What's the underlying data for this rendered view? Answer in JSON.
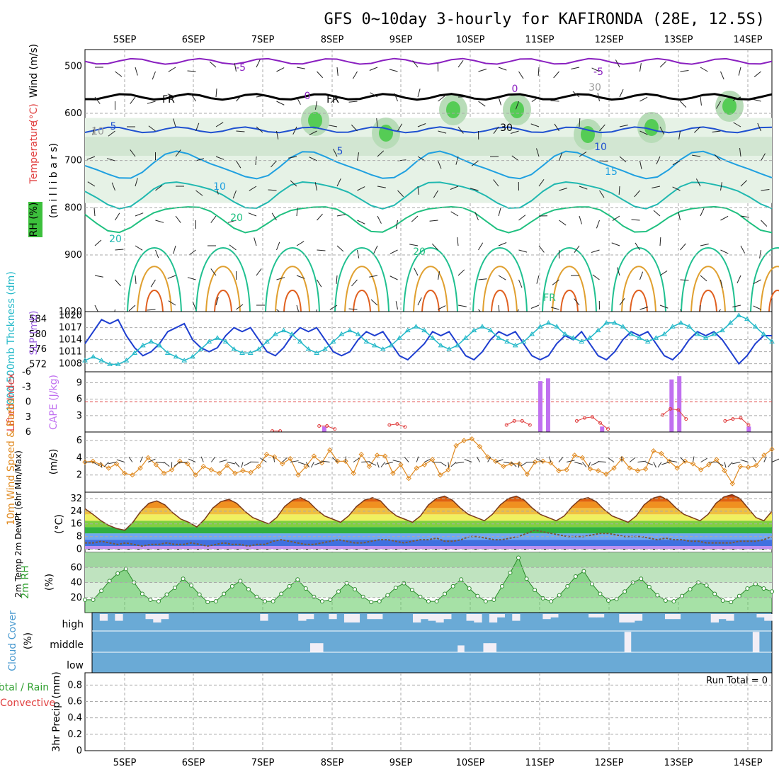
{
  "title": "GFS 0~10day 3-hourly for KAFIRONDA (28E, 12.5S)",
  "colors": {
    "grid": "#aaaaaa",
    "slp": "#1f3fd0",
    "thick": "#22b8c8",
    "cape": "#c070f0",
    "li": "#e04040",
    "wind": "#e08a20",
    "rh2m_fill": "#3cc03c",
    "rh2m_line": "#2a8a2a",
    "cloud": "#6aaad6",
    "cloud_gap": "#f2eef6",
    "temp_line": "#7a3a1a",
    "dew_line": "#7a5a3a",
    "temp_levels": [
      "#c090f0",
      "#4070e0",
      "#70a8f0",
      "#30b040",
      "#80d040",
      "#f0f060",
      "#f0c040",
      "#f09020",
      "#e06010",
      "#c03000"
    ]
  },
  "chart_data": [
    {
      "panel": "upper-air cross-section",
      "type": "heatmap",
      "x_axis_top": [
        "5SEP",
        "6SEP",
        "7SEP",
        "8SEP",
        "9SEP",
        "10SEP",
        "11SEP",
        "12SEP",
        "13SEP",
        "14SEP"
      ],
      "y_ticks": [
        "500",
        "600",
        "700",
        "800",
        "900",
        "1020"
      ],
      "ylabel_parts": [
        "RH (%)",
        "Temperature",
        "(°C)",
        "Wind (m/s)"
      ],
      "ylabel_units": "(m i l l i b a r s)",
      "contour_labels": [
        "-5",
        "-5",
        "0",
        "0",
        "5",
        "5",
        "10",
        "10",
        "15",
        "20",
        "20",
        "20",
        "FR",
        "FR",
        "FR",
        "30",
        "30",
        "10"
      ],
      "temp_contours": [
        {
          "label": "-5",
          "level": 490,
          "color": "#8a20c0"
        },
        {
          "label": "0",
          "level": 565,
          "color": "#000000"
        },
        {
          "label": "5",
          "level": 635,
          "color": "#1f50d0"
        },
        {
          "label": "10",
          "level": 710,
          "color": "#1fa0e0"
        },
        {
          "label": "15",
          "level": 770,
          "color": "#20b8b0"
        },
        {
          "label": "20",
          "level": 820,
          "color": "#20c080"
        }
      ]
    },
    {
      "panel": "thickness-slp",
      "type": "line",
      "ylabel_left": "1000-500mb Thckness (dm)",
      "ylabel_right": "SLP (mb)",
      "left_ticks": [
        "584",
        "580",
        "576",
        "572"
      ],
      "right_ticks": [
        "1020",
        "1017",
        "1014",
        "1011",
        "1008"
      ],
      "series": [
        {
          "name": "SLP",
          "values": [
            1013,
            1016,
            1019,
            1018,
            1019,
            1015,
            1012,
            1010,
            1011,
            1013,
            1016,
            1017,
            1018,
            1014,
            1012,
            1011,
            1012,
            1015,
            1017,
            1016,
            1017,
            1014,
            1011,
            1010,
            1012,
            1015,
            1017,
            1016,
            1017,
            1014,
            1011,
            1010,
            1011,
            1014,
            1016,
            1015,
            1016,
            1013,
            1010,
            1009,
            1011,
            1013,
            1016,
            1015,
            1016,
            1013,
            1010,
            1009,
            1011,
            1014,
            1016,
            1015,
            1016,
            1013,
            1010,
            1009,
            1010,
            1013,
            1015,
            1014,
            1016,
            1013,
            1010,
            1009,
            1011,
            1014,
            1016,
            1015,
            1016,
            1013,
            1010,
            1009,
            1011,
            1014,
            1016,
            1015,
            1016,
            1014,
            1011,
            1008,
            1010,
            1013,
            1015,
            1015
          ]
        },
        {
          "name": "Thickness",
          "values": [
            573,
            574,
            573,
            572,
            572,
            573,
            575,
            577,
            578,
            577,
            575,
            574,
            573,
            574,
            576,
            578,
            579,
            578,
            576,
            575,
            575,
            576,
            578,
            580,
            581,
            580,
            578,
            576,
            575,
            576,
            578,
            580,
            581,
            580,
            578,
            577,
            576,
            577,
            579,
            581,
            582,
            581,
            579,
            577,
            576,
            577,
            579,
            581,
            582,
            581,
            579,
            578,
            577,
            578,
            580,
            582,
            583,
            582,
            580,
            579,
            578,
            579,
            581,
            583,
            583,
            582,
            580,
            579,
            578,
            579,
            580,
            582,
            583,
            582,
            580,
            579,
            580,
            581,
            583,
            585,
            584,
            582,
            580,
            578
          ]
        }
      ]
    },
    {
      "panel": "cape-li",
      "type": "bar",
      "ylabel_left": "Lifted Index",
      "ylabel_right": "CAPE (J/kg)",
      "left_ticks": [
        "-6",
        "-3",
        "0",
        "3",
        "6"
      ],
      "right_ticks": [
        "9",
        "6",
        "3"
      ],
      "cape_values": [
        0,
        0,
        0,
        0,
        0,
        0,
        0,
        0,
        0,
        0,
        0,
        0,
        0,
        0,
        0,
        0,
        0,
        0,
        0,
        0,
        0,
        0,
        0,
        0,
        0,
        0,
        0,
        0,
        0,
        0,
        0,
        1,
        0,
        0,
        0,
        0,
        0,
        0,
        0,
        0,
        0,
        0,
        0,
        0,
        0,
        0,
        0,
        0,
        0,
        0,
        0,
        0,
        0,
        0,
        0,
        0,
        0,
        0,
        0,
        9.3,
        9.8,
        0,
        0,
        0,
        0,
        0,
        0,
        1,
        0,
        0,
        0,
        0,
        0,
        0,
        0,
        0,
        9.6,
        10.2,
        0,
        0,
        0,
        0,
        0,
        0,
        0,
        0,
        1,
        0,
        0,
        0
      ],
      "li_values": [
        null,
        null,
        null,
        null,
        null,
        null,
        null,
        null,
        null,
        null,
        null,
        null,
        null,
        null,
        null,
        null,
        null,
        null,
        null,
        null,
        null,
        null,
        null,
        null,
        5.8,
        5.8,
        null,
        null,
        null,
        null,
        4.8,
        4.8,
        5.4,
        null,
        null,
        null,
        null,
        null,
        null,
        4.6,
        4.4,
        5.0,
        null,
        null,
        null,
        null,
        null,
        null,
        null,
        null,
        null,
        null,
        null,
        null,
        4.6,
        3.8,
        3.8,
        4.6,
        null,
        null,
        null,
        null,
        null,
        3.8,
        3.2,
        3.0,
        4.2,
        5.4,
        null,
        null,
        null,
        null,
        null,
        null,
        2.6,
        1.4,
        1.6,
        3.4,
        null,
        null,
        null,
        null,
        3.8,
        3.4,
        3.2,
        4.6,
        null,
        null,
        null
      ]
    },
    {
      "panel": "10m-wind",
      "type": "line",
      "ylabel": "10m Wind Speed & Barbs",
      "units": "(m/s)",
      "ticks": [
        "6",
        "4",
        "2"
      ],
      "values": [
        3.5,
        3.6,
        3.2,
        2.8,
        3.3,
        2.2,
        2.0,
        2.8,
        4.0,
        3.2,
        2.2,
        2.6,
        3.6,
        3.3,
        2.0,
        3.0,
        2.6,
        2.2,
        3.1,
        2.2,
        2.5,
        2.3,
        3.0,
        4.4,
        4.1,
        3.3,
        3.9,
        2.0,
        3.0,
        4.2,
        3.4,
        4.9,
        3.6,
        3.6,
        2.2,
        4.4,
        3.0,
        4.3,
        4.2,
        2.2,
        3.2,
        1.6,
        2.8,
        3.2,
        3.8,
        2.0,
        2.6,
        5.4,
        6.0,
        6.2,
        5.3,
        4.1,
        3.6,
        3.0,
        3.3,
        3.3,
        2.1,
        3.5,
        3.6,
        3.4,
        2.5,
        2.6,
        4.3,
        4.0,
        2.7,
        2.5,
        2.1,
        2.8,
        3.9,
        2.8,
        2.5,
        2.7,
        4.8,
        4.5,
        3.6,
        2.8,
        3.6,
        3.3,
        2.6,
        3.2,
        3.8,
        2.5,
        1.0,
        3.0,
        2.9,
        3.1,
        4.3,
        5.0
      ]
    },
    {
      "panel": "2m-temp",
      "type": "area",
      "ylabel": "2m Temp 2m DewPt (6hr Min/Max)",
      "units": "(°C)",
      "ticks": [
        "32",
        "24",
        "16",
        "8",
        "0"
      ],
      "temp_values": [
        25.6,
        22.0,
        18.0,
        15.0,
        13.0,
        12.0,
        17.0,
        24.0,
        29.0,
        30.5,
        28.0,
        23.0,
        19.0,
        17.0,
        14.0,
        19.0,
        26.0,
        30.0,
        31.5,
        29.0,
        24.0,
        20.0,
        18.0,
        16.0,
        20.0,
        27.0,
        31.0,
        32.5,
        30.0,
        25.0,
        21.0,
        19.0,
        17.0,
        21.0,
        27.0,
        31.0,
        32.5,
        30.5,
        25.0,
        21.0,
        19.0,
        17.0,
        21.0,
        28.0,
        32.0,
        33.5,
        31.0,
        26.0,
        22.0,
        20.0,
        18.0,
        22.0,
        28.0,
        32.0,
        33.5,
        31.0,
        26.0,
        22.0,
        20.0,
        18.0,
        21.0,
        27.0,
        31.5,
        32.5,
        30.0,
        25.0,
        21.0,
        19.0,
        17.0,
        21.0,
        28.0,
        32.0,
        33.5,
        31.0,
        26.0,
        22.0,
        20.0,
        18.0,
        22.0,
        29.0,
        33.0,
        34.5,
        32.0,
        26.0,
        20.0,
        18.0,
        24.0
      ],
      "dew_values": [
        4,
        4,
        5,
        4,
        3,
        4,
        3,
        2,
        3,
        3,
        4,
        3,
        3,
        4,
        3,
        2,
        3,
        4,
        3,
        3,
        2,
        3,
        3,
        5,
        6,
        5,
        4,
        3,
        3,
        4,
        5,
        6,
        5,
        4,
        4,
        5,
        6,
        6,
        5,
        4,
        5,
        6,
        6,
        7,
        5,
        5,
        6,
        8,
        8,
        7,
        6,
        6,
        7,
        8,
        10,
        12,
        11,
        10,
        9,
        8,
        8,
        8,
        9,
        10,
        10,
        9,
        8,
        8,
        8,
        7,
        6,
        7,
        6,
        6,
        5,
        5,
        4,
        4,
        4,
        4,
        5,
        5,
        5,
        6,
        8
      ]
    },
    {
      "panel": "2m-rh",
      "type": "area",
      "ylabel": "2m RH",
      "units": "(%)",
      "ticks": [
        "60",
        "40",
        "20"
      ],
      "values": [
        17,
        17,
        29,
        42,
        52,
        58,
        40,
        25,
        17,
        15,
        24,
        33,
        45,
        36,
        24,
        14,
        15,
        25,
        35,
        42,
        31,
        21,
        15,
        15,
        25,
        35,
        44,
        32,
        21,
        15,
        17,
        28,
        39,
        31,
        21,
        14,
        15,
        23,
        33,
        39,
        30,
        21,
        15,
        15,
        25,
        35,
        44,
        32,
        22,
        15,
        17,
        35,
        53,
        73,
        45,
        30,
        19,
        15,
        23,
        35,
        48,
        55,
        38,
        25,
        16,
        18,
        28,
        40,
        45,
        34,
        23,
        16,
        15,
        22,
        31,
        40,
        36,
        25,
        16,
        14,
        22,
        32,
        38,
        32,
        28
      ]
    },
    {
      "panel": "cloud-cover",
      "type": "heatmap",
      "ylabel": "Cloud Cover",
      "units": "(%)",
      "levels": [
        "high",
        "middle",
        "low"
      ],
      "high_gaps": [
        0.0,
        0.4,
        0.0,
        0.4,
        0.0,
        0.0,
        0.0,
        0.3,
        0.5,
        0.3,
        0.0,
        0.0,
        0.0,
        0.0,
        0.0,
        0.0,
        0.0,
        0.0,
        0.0,
        0.0,
        0.0,
        0.0,
        0.4,
        0.0,
        0.0,
        0.0,
        0.0,
        0.4,
        0.3,
        0.0,
        0.0,
        0.3,
        0.0,
        0.5,
        0.5,
        0.0,
        0.3,
        0.3,
        0.0,
        0.0,
        0.0,
        0.0,
        0.5,
        0.3,
        0.4,
        0.5,
        0.3,
        0.0,
        0.0,
        0.4,
        0.5,
        0.0,
        0.5,
        0.2,
        0.0,
        0.4,
        0.0,
        0.0,
        0.0,
        0.3,
        0.2,
        0.0,
        0.0,
        0.0,
        0.0,
        0.2,
        0.2,
        0.0,
        0.0,
        0.5,
        0.5,
        0.4,
        0.0,
        0.0,
        0.0,
        0.3,
        0.3,
        0.0,
        0.0,
        0.0,
        0.0,
        0.5,
        0.3,
        0.4,
        0.0,
        0.0,
        0.0,
        0.2,
        0.4
      ],
      "middle_gaps": [
        0,
        0,
        0,
        0,
        0,
        0,
        0,
        0,
        0,
        0,
        0,
        0,
        0,
        0,
        0,
        0,
        0,
        0,
        0,
        0,
        0,
        0,
        0,
        0,
        0,
        0,
        0,
        0,
        0,
        0,
        0,
        0,
        0,
        0,
        0.4,
        0.4,
        0,
        0,
        0,
        0,
        0,
        0,
        0,
        0,
        0,
        0,
        0,
        0,
        0,
        0,
        0,
        0,
        0,
        0,
        0,
        0,
        0,
        0.3,
        0,
        0,
        0,
        0.4,
        0.4,
        0,
        0,
        0,
        0,
        0,
        0,
        0,
        0,
        0,
        0,
        0,
        0,
        0,
        0,
        0,
        0,
        0,
        0,
        0,
        0,
        0.9,
        0,
        0,
        0,
        0,
        0,
        0,
        0,
        0,
        0,
        0,
        0,
        0,
        0,
        0,
        0,
        0,
        0,
        0,
        0,
        0.9,
        0,
        0
      ]
    },
    {
      "panel": "3hr-precip",
      "type": "bar",
      "ylabel": "3hr Precip (mm)",
      "ylabel_parts": [
        "Total / Rain",
        "Convective"
      ],
      "ticks": [
        "0.8",
        "0.6",
        "0.4",
        "0.2",
        "0"
      ],
      "run_total": "Run Total = 0",
      "values": []
    }
  ],
  "x_axis_bottom": [
    "5SEP",
    "6SEP",
    "7SEP",
    "8SEP",
    "9SEP",
    "10SEP",
    "11SEP",
    "12SEP",
    "13SEP",
    "14SEP"
  ]
}
